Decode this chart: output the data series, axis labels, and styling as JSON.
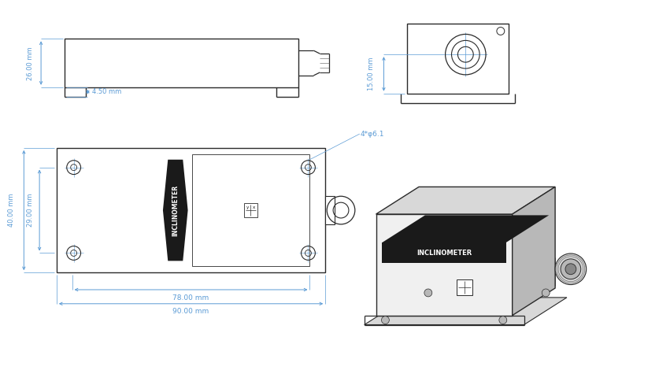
{
  "bg_color": "#ffffff",
  "dim_color": "#5b9bd5",
  "line_color": "#2a2a2a",
  "dark_color": "#111111",
  "gray1": "#f0f0f0",
  "gray2": "#d8d8d8",
  "gray3": "#b8b8b8",
  "black_panel": "#1a1a1a",
  "dimensions": {
    "height_main": "26.00 mm",
    "foot_height": "4.50 mm",
    "side_height": "15.00 mm",
    "body_width": "78.00 mm",
    "total_width": "90.00 mm",
    "body_height_front": "40.00 mm",
    "inner_height": "29.00 mm",
    "hole_label": "4*φ6.1"
  }
}
